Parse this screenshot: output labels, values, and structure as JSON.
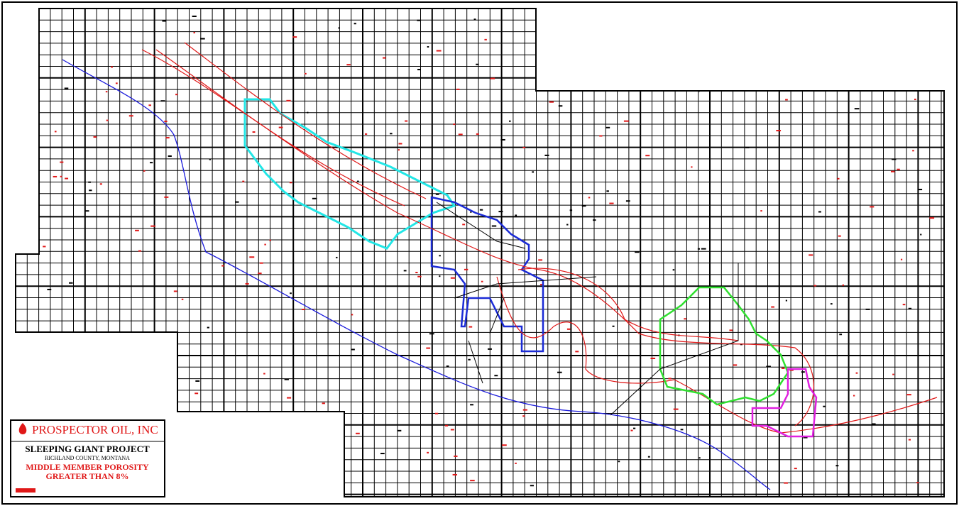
{
  "legend": {
    "company": "PROSPECTOR OIL, INC",
    "project": "SLEEPING GIANT PROJECT",
    "county": "RICHLAND COUNTY, MONTANA",
    "map_title": "MIDDLE MEMBER POROSITY",
    "map_subtitle": "GREATER THAN 8%"
  }
}
